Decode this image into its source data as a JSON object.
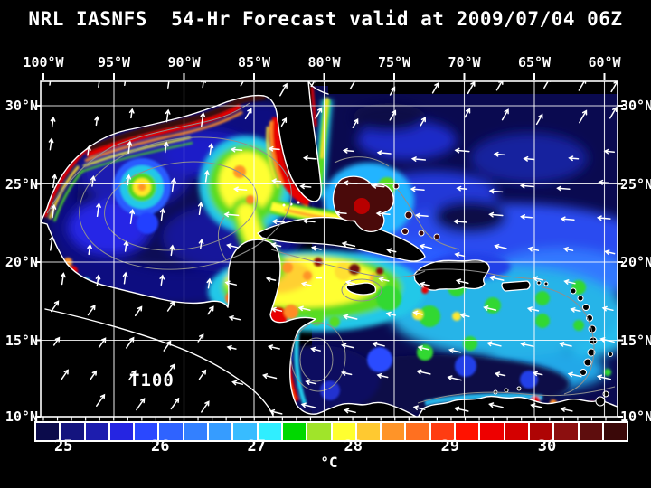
{
  "title": "NRL IASNFS  54-Hr Forecast valid at 2009/07/04 06Z",
  "axes": {
    "lon_labels": [
      "100°W",
      "95°W",
      "90°W",
      "85°W",
      "80°W",
      "75°W",
      "70°W",
      "65°W",
      "60°W"
    ],
    "lat_labels_left": [
      "30°N",
      "25°N",
      "20°N",
      "15°N",
      "10°N"
    ],
    "lat_labels_right": [
      "30°N",
      "25°N",
      "20°N",
      "15°N",
      "10°N"
    ]
  },
  "annotations": {
    "model_label": "T100"
  },
  "colorbar": {
    "unit": "°C",
    "tick_labels": [
      "25",
      "26",
      "27",
      "28",
      "29",
      "30"
    ],
    "cell_colors": [
      "#0b0b4b",
      "#14147e",
      "#1d1dae",
      "#2525e2",
      "#2a48ff",
      "#2f63ff",
      "#3380ff",
      "#369cff",
      "#38bcff",
      "#30eeff",
      "#00d800",
      "#a0e42a",
      "#ffff30",
      "#ffc930",
      "#ff9428",
      "#ff7020",
      "#ff3c12",
      "#ff1200",
      "#ee0000",
      "#d40000",
      "#ae0404",
      "#8c0f0f",
      "#5e0d0d",
      "#3a0808"
    ]
  },
  "chart_data": {
    "type": "heatmap",
    "title": "NRL IASNFS 54-Hr Forecast valid at 2009/07/04 06Z",
    "unit": "°C",
    "colorbar_ticks": [
      25,
      26,
      27,
      28,
      29,
      30
    ],
    "lon_axis_deg_west": [
      100,
      95,
      90,
      85,
      80,
      75,
      70,
      65,
      60
    ],
    "lat_axis_deg_north": [
      30,
      25,
      20,
      15,
      10
    ],
    "overlays": [
      "wind vectors",
      "coastlines",
      "bathymetry contours",
      "lat-lon grid"
    ],
    "annotation": "T100"
  },
  "colors": {
    "background": "#000000",
    "grid": "#ffffff",
    "coastline": "#ffffff",
    "contour": "#8f8f8f",
    "atlantic_base": "#0a0a50"
  }
}
